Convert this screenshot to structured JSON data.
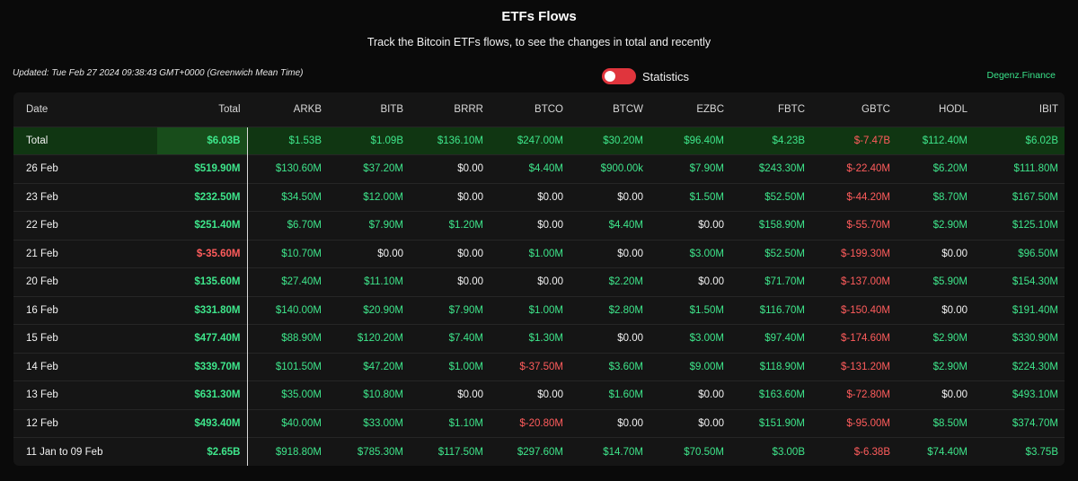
{
  "header": {
    "title": "ETFs Flows",
    "subtitle": "Track the Bitcoin ETFs flows, to see the changes in total and recently"
  },
  "updated": "Updated: Tue Feb 27 2024 09:38:43 GMT+0000 (Greenwich Mean Time)",
  "toggle": {
    "label": "Statistics",
    "on": true
  },
  "brand": "Degenz.Finance",
  "colors": {
    "positive": "#3ee68b",
    "negative": "#ff5c5c",
    "toggle": "#e0353d"
  },
  "table": {
    "columns": [
      "Date",
      "Total",
      "ARKB",
      "BITB",
      "BRRR",
      "BTCO",
      "BTCW",
      "EZBC",
      "FBTC",
      "GBTC",
      "HODL",
      "IBIT"
    ],
    "rows": [
      [
        "Total",
        "$6.03B",
        "$1.53B",
        "$1.09B",
        "$136.10M",
        "$247.00M",
        "$30.20M",
        "$96.40M",
        "$4.23B",
        "$-7.47B",
        "$112.40M",
        "$6.02B"
      ],
      [
        "26 Feb",
        "$519.90M",
        "$130.60M",
        "$37.20M",
        "$0.00",
        "$4.40M",
        "$900.00k",
        "$7.90M",
        "$243.30M",
        "$-22.40M",
        "$6.20M",
        "$111.80M"
      ],
      [
        "23 Feb",
        "$232.50M",
        "$34.50M",
        "$12.00M",
        "$0.00",
        "$0.00",
        "$0.00",
        "$1.50M",
        "$52.50M",
        "$-44.20M",
        "$8.70M",
        "$167.50M"
      ],
      [
        "22 Feb",
        "$251.40M",
        "$6.70M",
        "$7.90M",
        "$1.20M",
        "$0.00",
        "$4.40M",
        "$0.00",
        "$158.90M",
        "$-55.70M",
        "$2.90M",
        "$125.10M"
      ],
      [
        "21 Feb",
        "$-35.60M",
        "$10.70M",
        "$0.00",
        "$0.00",
        "$1.00M",
        "$0.00",
        "$3.00M",
        "$52.50M",
        "$-199.30M",
        "$0.00",
        "$96.50M"
      ],
      [
        "20 Feb",
        "$135.60M",
        "$27.40M",
        "$11.10M",
        "$0.00",
        "$0.00",
        "$2.20M",
        "$0.00",
        "$71.70M",
        "$-137.00M",
        "$5.90M",
        "$154.30M"
      ],
      [
        "16 Feb",
        "$331.80M",
        "$140.00M",
        "$20.90M",
        "$7.90M",
        "$1.00M",
        "$2.80M",
        "$1.50M",
        "$116.70M",
        "$-150.40M",
        "$0.00",
        "$191.40M"
      ],
      [
        "15 Feb",
        "$477.40M",
        "$88.90M",
        "$120.20M",
        "$7.40M",
        "$1.30M",
        "$0.00",
        "$3.00M",
        "$97.40M",
        "$-174.60M",
        "$2.90M",
        "$330.90M"
      ],
      [
        "14 Feb",
        "$339.70M",
        "$101.50M",
        "$47.20M",
        "$1.00M",
        "$-37.50M",
        "$3.60M",
        "$9.00M",
        "$118.90M",
        "$-131.20M",
        "$2.90M",
        "$224.30M"
      ],
      [
        "13 Feb",
        "$631.30M",
        "$35.00M",
        "$10.80M",
        "$0.00",
        "$0.00",
        "$1.60M",
        "$0.00",
        "$163.60M",
        "$-72.80M",
        "$0.00",
        "$493.10M"
      ],
      [
        "12 Feb",
        "$493.40M",
        "$40.00M",
        "$33.00M",
        "$1.10M",
        "$-20.80M",
        "$0.00",
        "$0.00",
        "$151.90M",
        "$-95.00M",
        "$8.50M",
        "$374.70M"
      ],
      [
        "11 Jan to 09 Feb",
        "$2.65B",
        "$918.80M",
        "$785.30M",
        "$117.50M",
        "$297.60M",
        "$14.70M",
        "$70.50M",
        "$3.00B",
        "$-6.38B",
        "$74.40M",
        "$3.75B"
      ]
    ]
  }
}
